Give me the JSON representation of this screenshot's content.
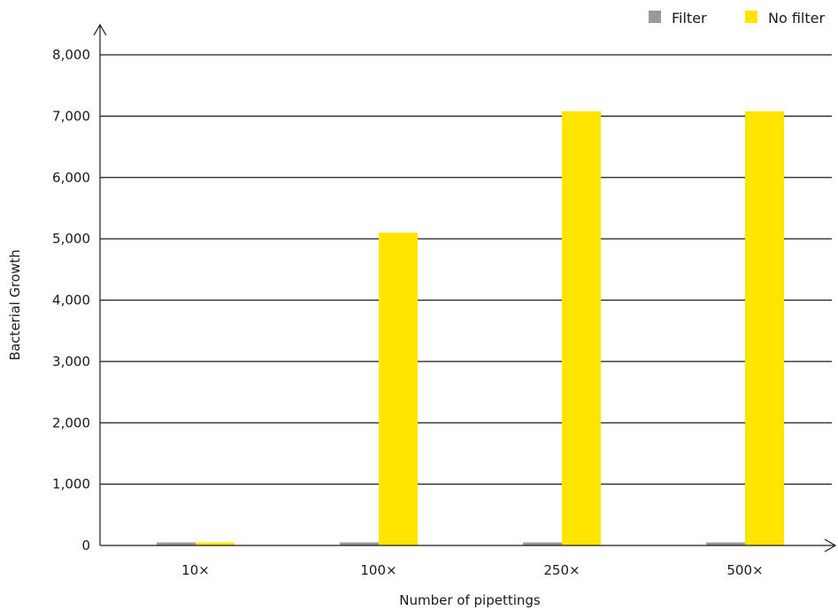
{
  "chart_data": {
    "type": "bar",
    "title": "",
    "xlabel": "Number of pipettings",
    "ylabel": "Bacterial Growth",
    "categories": [
      "10×",
      "100×",
      "250×",
      "500×"
    ],
    "series": [
      {
        "name": "Filter",
        "color": "#999999",
        "values": [
          50,
          50,
          50,
          50
        ]
      },
      {
        "name": "No filter",
        "color": "#ffe500",
        "values": [
          50,
          5100,
          7080,
          7080
        ]
      }
    ],
    "ylim": [
      0,
      8000
    ],
    "yticks": [
      0,
      1000,
      2000,
      3000,
      4000,
      5000,
      6000,
      7000,
      8000
    ],
    "ytick_labels": [
      "0",
      "1,000",
      "2,000",
      "3,000",
      "4,000",
      "5,000",
      "6,000",
      "7,000",
      "8,000"
    ],
    "grid": true,
    "legend_position": "top-right"
  }
}
